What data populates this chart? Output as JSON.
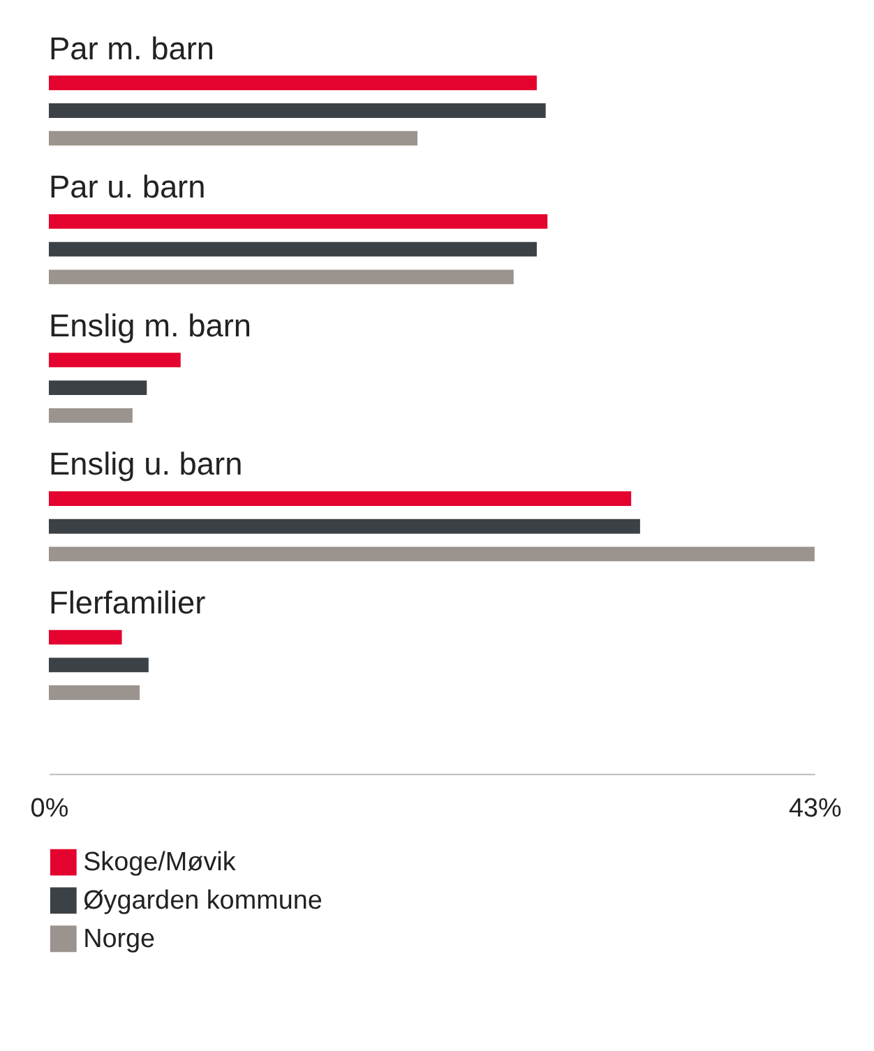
{
  "chart_data": {
    "type": "bar",
    "orientation": "horizontal",
    "categories": [
      "Par m. barn",
      "Par u. barn",
      "Enslig m. barn",
      "Enslig u. barn",
      "Flerfamilier"
    ],
    "series": [
      {
        "name": "Skoge/Møvik",
        "color": "#e4032e",
        "values": [
          27.4,
          28.0,
          7.4,
          32.7,
          4.1
        ]
      },
      {
        "name": "Øygarden kommune",
        "color": "#3c4146",
        "values": [
          27.9,
          27.4,
          5.5,
          33.2,
          5.6
        ]
      },
      {
        "name": "Norge",
        "color": "#9b948e",
        "values": [
          20.7,
          26.1,
          4.7,
          43.0,
          5.1
        ]
      }
    ],
    "xlim": [
      0,
      43
    ],
    "xticks": [
      {
        "value": 0,
        "label": "0%"
      },
      {
        "value": 43,
        "label": "43%"
      }
    ],
    "grid": false,
    "legend": "bottom"
  }
}
